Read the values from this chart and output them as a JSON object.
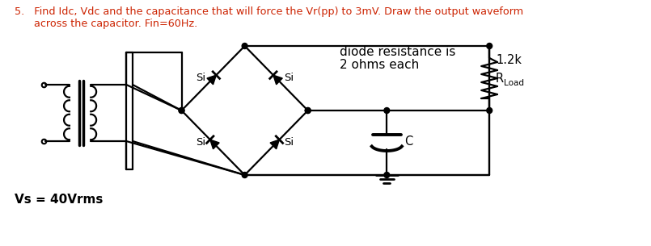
{
  "title_line1": "5.   Find Idc, Vdc and the capacitance that will force the Vr(pp) to 3mV. Draw the output waveform",
  "title_line2": "      across the capacitor. Fin=60Hz.",
  "annotation_line1": "diode resistance is",
  "annotation_line2": "2 ohms each",
  "label_si_top_left": "Si",
  "label_si_top_right": "Si",
  "label_si_bot_left": "Si",
  "label_si_bot_right": "Si",
  "label_c": "C",
  "label_r": "1.2k",
  "label_rload": "R",
  "label_rload_sub": "Load",
  "label_vs": "Vs = 40Vrms",
  "bg_color": "#ffffff",
  "text_color": "#000000",
  "title_color": "#cc2200",
  "line_color": "#000000",
  "fig_width": 8.05,
  "fig_height": 3.05,
  "dpi": 100
}
